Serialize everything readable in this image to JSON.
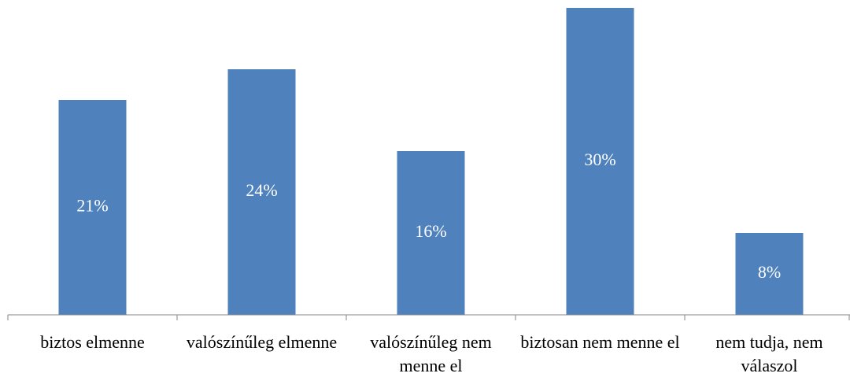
{
  "chart_data": {
    "type": "bar",
    "categories": [
      "biztos elmenne",
      "valószínűleg elmenne",
      "valószínűleg nem menne el",
      "biztosan nem menne el",
      "nem tudja, nem válaszol"
    ],
    "values": [
      21,
      24,
      16,
      30,
      8
    ],
    "value_labels": [
      "21%",
      "24%",
      "16%",
      "30%",
      "8%"
    ],
    "color": "#4f81bd"
  }
}
